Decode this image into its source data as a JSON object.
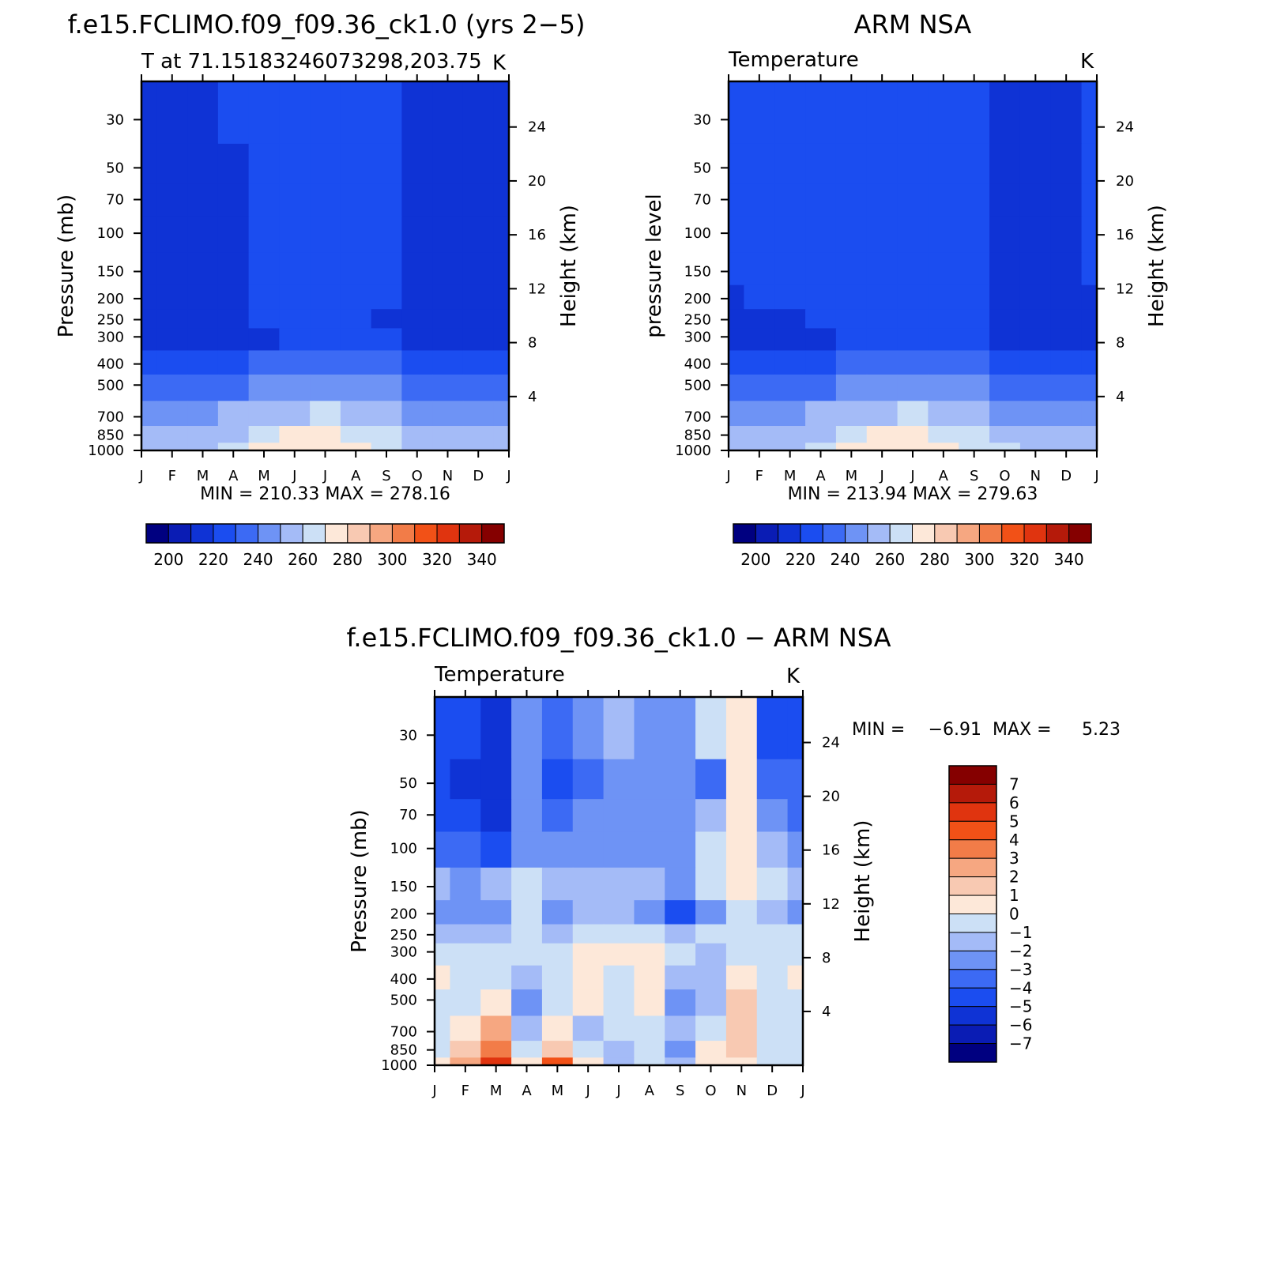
{
  "chart_data": [
    {
      "type": "heatmap",
      "panel": "model",
      "title": "f.e15.FCLIMO.f09_f09.36_ck1.0 (yrs 2−5)",
      "left_string": "T at 71.15183246073298,203.75",
      "right_string": "K",
      "xlabel": "",
      "ylabel": "Pressure (mb)",
      "right_ylabel": "Height (km)",
      "x_ticks": [
        "J",
        "F",
        "M",
        "A",
        "M",
        "J",
        "J",
        "A",
        "S",
        "O",
        "N",
        "D",
        "J"
      ],
      "y_ticks": [
        "30",
        "50",
        "70",
        "100",
        "150",
        "200",
        "250",
        "300",
        "400",
        "500",
        "700",
        "850",
        "1000"
      ],
      "y_levels": [
        30,
        50,
        70,
        100,
        150,
        200,
        250,
        300,
        400,
        500,
        700,
        850,
        1000
      ],
      "ylim": [
        20,
        1000
      ],
      "right_y_ticks": [
        "24",
        "20",
        "16",
        "12",
        "8",
        "4"
      ],
      "stats": "MIN = 210.33 MAX = 278.16",
      "min": 210.33,
      "max": 278.16,
      "colorbar_labels": [
        "200",
        "220",
        "240",
        "260",
        "280",
        "300",
        "320",
        "340"
      ],
      "colorbar_levels": [
        190,
        200,
        210,
        220,
        230,
        240,
        250,
        260,
        270,
        280,
        290,
        300,
        310,
        320,
        330,
        340,
        350
      ],
      "colorbar_colors": [
        "#000080",
        "#0a1cb4",
        "#0f33d5",
        "#1b4df0",
        "#3c6af4",
        "#6e93f5",
        "#a4bbf7",
        "#cce0f6",
        "#fde8d9",
        "#f8c9b2",
        "#f6a781",
        "#f27c48",
        "#f25117",
        "#e0340f",
        "#b51a0a",
        "#850000"
      ],
      "data": [
        [
          212,
          212,
          214,
          222,
          224,
          224,
          225,
          224,
          221,
          213,
          212,
          212,
          212
        ],
        [
          212,
          212,
          214,
          219,
          223,
          224,
          224,
          224,
          221,
          213,
          212,
          212,
          212
        ],
        [
          212,
          213,
          215,
          218,
          223,
          224,
          224,
          224,
          221,
          214,
          212,
          212,
          212
        ],
        [
          213,
          213,
          216,
          217,
          222,
          224,
          224,
          224,
          221,
          215,
          213,
          213,
          213
        ],
        [
          213,
          214,
          216,
          218,
          222,
          223,
          224,
          224,
          223,
          217,
          214,
          213,
          213
        ],
        [
          214,
          214,
          215,
          218,
          221,
          223,
          224,
          224,
          222,
          216,
          214,
          214,
          214
        ],
        [
          214,
          214,
          214,
          216,
          220,
          222,
          223,
          223,
          219,
          216,
          214,
          214,
          214
        ],
        [
          215,
          215,
          215,
          216,
          219,
          222,
          222,
          222,
          220,
          217,
          216,
          215,
          215
        ],
        [
          226,
          226,
          227,
          229,
          232,
          234,
          235,
          234,
          232,
          229,
          227,
          226,
          226
        ],
        [
          235,
          235,
          236,
          238,
          241,
          243,
          244,
          243,
          241,
          238,
          236,
          235,
          235
        ],
        [
          246,
          246,
          247,
          250,
          255,
          259,
          261,
          259,
          254,
          249,
          247,
          246,
          246
        ],
        [
          251,
          251,
          253,
          257,
          264,
          270,
          272,
          269,
          262,
          256,
          253,
          251,
          251
        ],
        [
          253,
          253,
          256,
          262,
          270,
          276,
          278,
          275,
          266,
          259,
          256,
          253,
          253
        ]
      ]
    },
    {
      "type": "heatmap",
      "panel": "obs",
      "title": "ARM NSA",
      "left_string": "Temperature",
      "right_string": "K",
      "ylabel": "pressure level",
      "right_ylabel": "Height (km)",
      "x_ticks": [
        "J",
        "F",
        "M",
        "A",
        "M",
        "J",
        "J",
        "A",
        "S",
        "O",
        "N",
        "D",
        "J"
      ],
      "y_ticks": [
        "30",
        "50",
        "70",
        "100",
        "150",
        "200",
        "250",
        "300",
        "400",
        "500",
        "700",
        "850",
        "1000"
      ],
      "y_levels": [
        30,
        50,
        70,
        100,
        150,
        200,
        250,
        300,
        400,
        500,
        700,
        850,
        1000
      ],
      "ylim": [
        20,
        1000
      ],
      "right_y_ticks": [
        "24",
        "20",
        "16",
        "12",
        "8",
        "4"
      ],
      "stats": "MIN = 213.94 MAX = 279.63",
      "min": 213.94,
      "max": 279.63,
      "colorbar_labels": [
        "200",
        "220",
        "240",
        "260",
        "280",
        "300",
        "320",
        "340"
      ],
      "colorbar_levels": [
        190,
        200,
        210,
        220,
        230,
        240,
        250,
        260,
        270,
        280,
        290,
        300,
        310,
        320,
        330,
        340,
        350
      ],
      "colorbar_colors": [
        "#000080",
        "#0a1cb4",
        "#0f33d5",
        "#1b4df0",
        "#3c6af4",
        "#6e93f5",
        "#a4bbf7",
        "#cce0f6",
        "#fde8d9",
        "#f8c9b2",
        "#f6a781",
        "#f27c48",
        "#f25117",
        "#e0340f",
        "#b51a0a",
        "#850000"
      ],
      "data": [
        [
          221,
          222,
          223,
          224,
          225,
          226,
          227,
          226,
          224,
          216,
          214,
          214,
          221
        ],
        [
          221,
          222,
          223,
          224,
          225,
          226,
          226,
          226,
          224,
          217,
          215,
          215,
          221
        ],
        [
          221,
          222,
          223,
          224,
          225,
          226,
          226,
          226,
          224,
          217,
          215,
          215,
          221
        ],
        [
          221,
          222,
          223,
          224,
          225,
          226,
          226,
          226,
          224,
          218,
          215,
          215,
          221
        ],
        [
          220,
          222,
          223,
          224,
          225,
          226,
          226,
          226,
          224,
          219,
          216,
          216,
          220
        ],
        [
          219,
          221,
          222,
          223,
          224,
          225,
          225,
          225,
          223,
          219,
          216,
          216,
          219
        ],
        [
          216,
          217,
          219,
          221,
          223,
          224,
          224,
          224,
          222,
          218,
          216,
          216,
          216
        ],
        [
          215,
          215,
          216,
          218,
          221,
          223,
          224,
          223,
          221,
          217,
          216,
          215,
          215
        ],
        [
          226,
          226,
          227,
          229,
          232,
          234,
          235,
          234,
          232,
          229,
          227,
          226,
          226
        ],
        [
          235,
          235,
          236,
          238,
          241,
          243,
          244,
          243,
          241,
          238,
          236,
          235,
          235
        ],
        [
          246,
          246,
          247,
          250,
          255,
          259,
          261,
          259,
          254,
          249,
          247,
          246,
          246
        ],
        [
          251,
          252,
          254,
          258,
          265,
          270,
          272,
          269,
          263,
          257,
          254,
          252,
          251
        ],
        [
          254,
          255,
          258,
          263,
          271,
          277,
          279,
          276,
          268,
          261,
          258,
          255,
          254
        ]
      ]
    },
    {
      "type": "heatmap",
      "panel": "difference",
      "title": "f.e15.FCLIMO.f09_f09.36_ck1.0 − ARM NSA",
      "left_string": "Temperature",
      "right_string": "K",
      "ylabel": "Pressure (mb)",
      "right_ylabel": "Height (km)",
      "x_ticks": [
        "J",
        "F",
        "M",
        "A",
        "M",
        "J",
        "J",
        "A",
        "S",
        "O",
        "N",
        "D",
        "J"
      ],
      "y_ticks": [
        "30",
        "50",
        "70",
        "100",
        "150",
        "200",
        "250",
        "300",
        "400",
        "500",
        "700",
        "850",
        "1000"
      ],
      "y_levels": [
        30,
        50,
        70,
        100,
        150,
        200,
        250,
        300,
        400,
        500,
        700,
        850,
        1000
      ],
      "ylim": [
        20,
        1000
      ],
      "right_y_ticks": [
        "24",
        "20",
        "16",
        "12",
        "8",
        "4"
      ],
      "stats_label_min": "MIN =",
      "stats_min": "−6.91",
      "stats_label_max": "MAX =",
      "stats_max": "5.23",
      "min": -6.91,
      "max": 5.23,
      "colorbar_labels": [
        "7",
        "6",
        "5",
        "4",
        "3",
        "2",
        "1",
        "0",
        "−1",
        "−2",
        "−3",
        "−4",
        "−5",
        "−6",
        "−7"
      ],
      "colorbar_levels": [
        -8,
        -7,
        -6,
        -5,
        -4,
        -3,
        -2,
        -1,
        0,
        1,
        2,
        3,
        4,
        5,
        6,
        7,
        8
      ],
      "colorbar_colors": [
        "#000080",
        "#0a1cb4",
        "#0f33d5",
        "#1b4df0",
        "#3c6af4",
        "#6e93f5",
        "#a4bbf7",
        "#cce0f6",
        "#fde8d9",
        "#f8c9b2",
        "#f6a781",
        "#f27c48",
        "#f25117",
        "#e0340f",
        "#b51a0a",
        "#850000"
      ],
      "data": [
        [
          -5,
          -5,
          -5.5,
          -2.5,
          -4,
          -2.5,
          -2,
          -2.5,
          -2.5,
          -0.5,
          0.5,
          -4.5,
          -5
        ],
        [
          -5,
          -5.5,
          -6,
          -3,
          -4.5,
          -3.5,
          -2.5,
          -2.5,
          -2.5,
          -3.5,
          0.5,
          -3.5,
          -4
        ],
        [
          -4.5,
          -5,
          -5.5,
          -2.5,
          -4,
          -3,
          -3,
          -2.5,
          -2.5,
          -2,
          0.5,
          -2.5,
          -3.5
        ],
        [
          -3.5,
          -4,
          -4.5,
          -2.5,
          -2.5,
          -2.5,
          -2.5,
          -3,
          -2.5,
          -1,
          0.5,
          -1.5,
          -2.5
        ],
        [
          -1.5,
          -2.5,
          -2,
          -0.5,
          -2,
          -2,
          -2,
          -2,
          -2.5,
          -1,
          0.5,
          -0.5,
          -2
        ],
        [
          -2.5,
          -3,
          -2.5,
          -0.5,
          -3,
          -2,
          -1.5,
          -2.5,
          -5,
          -2.5,
          -1,
          -1.5,
          -2.5
        ],
        [
          -1.5,
          -1.5,
          -1.5,
          -0.5,
          -1.5,
          -1,
          -1,
          -1,
          -2,
          -1,
          -1,
          -0.5,
          -1
        ],
        [
          -0.5,
          -0.5,
          -1,
          -1,
          -0.5,
          0.5,
          0.5,
          0.5,
          -1,
          -2,
          -1,
          -1,
          -0.5
        ],
        [
          0.5,
          -0.5,
          -0.5,
          -2,
          -0.5,
          0.5,
          -0.5,
          0.5,
          -1.5,
          -2,
          0.5,
          -0.5,
          0.5
        ],
        [
          -0.5,
          -0.5,
          0.5,
          -3,
          -1,
          0.5,
          -0.5,
          0.5,
          -2.5,
          -1.5,
          1.5,
          -0.5,
          -0.5
        ],
        [
          -0.5,
          0.5,
          2.5,
          -2,
          0.5,
          -1.5,
          -0.5,
          -0.5,
          -1.5,
          -0.5,
          1.5,
          -0.5,
          -0.5
        ],
        [
          -0.5,
          1.5,
          3.5,
          -0.5,
          1.5,
          -0.5,
          -1.5,
          -0.5,
          -2.5,
          0.5,
          1.5,
          -0.5,
          -0.5
        ],
        [
          0.5,
          2.5,
          5,
          0.5,
          4.5,
          0.5,
          -1.5,
          -0.5,
          -1.5,
          0.5,
          0.5,
          -0.5,
          -0.5
        ]
      ]
    }
  ]
}
